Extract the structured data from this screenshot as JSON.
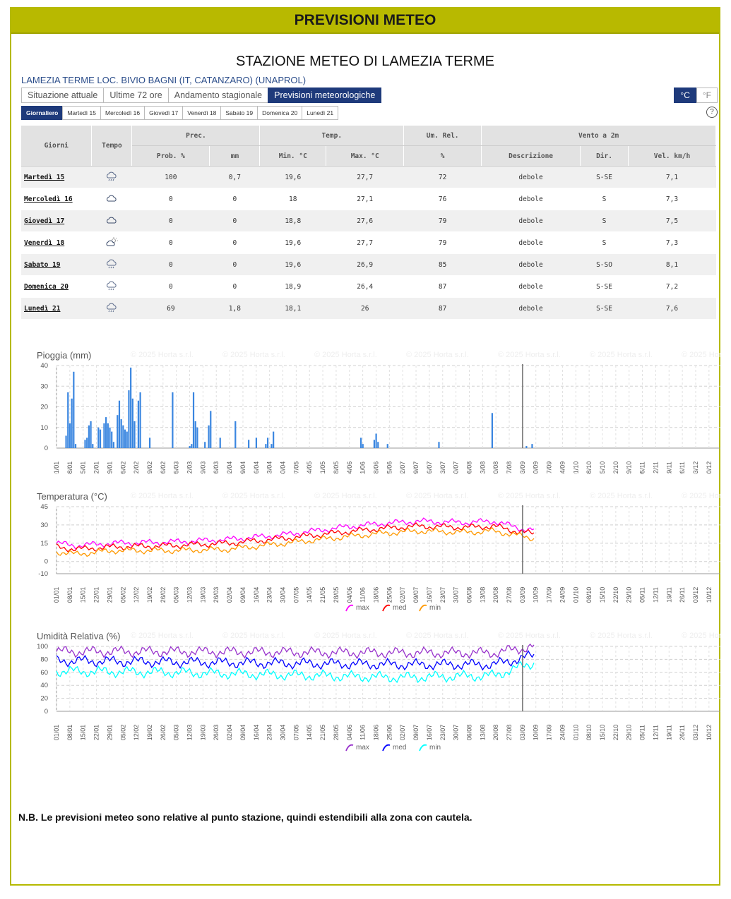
{
  "header": {
    "title": "PREVISIONI METEO"
  },
  "station": {
    "title": "STAZIONE METEO DI LAMEZIA TERME",
    "subtitle": "LAMEZIA TERME LOC. BIVIO BAGNI (IT, CATANZARO) (UNAPROL)"
  },
  "tabs": [
    {
      "label": "Situazione attuale",
      "active": false
    },
    {
      "label": "Ultime 72 ore",
      "active": false
    },
    {
      "label": "Andamento stagionale",
      "active": false
    },
    {
      "label": "Previsioni meteorologiche",
      "active": true
    }
  ],
  "units": [
    {
      "label": "°C",
      "active": true
    },
    {
      "label": "°F",
      "active": false
    }
  ],
  "day_tabs": [
    "Giornaliero",
    "Martedì 15",
    "Mercoledì 16",
    "Giovedì 17",
    "Venerdì 18",
    "Sabato 19",
    "Domenica 20",
    "Lunedì 21"
  ],
  "help_label": "?",
  "table": {
    "group_headers": [
      "Giorni",
      "Tempo",
      "Prec.",
      "Temp.",
      "Um. Rel.",
      "Vento a 2m"
    ],
    "sub_headers": [
      "Prob. %",
      "mm",
      "Min. °C",
      "Max. °C",
      "%",
      "Descrizione",
      "Dir.",
      "Vel. km/h"
    ],
    "rows": [
      {
        "day": "Martedì 15",
        "icon": "rain-cloud-icon",
        "prob": "100",
        "mm": "0,7",
        "tmin": "19,6",
        "tmax": "27,7",
        "rh": "72",
        "desc": "debole",
        "dir": "S-SE",
        "vel": "7,1"
      },
      {
        "day": "Mercoledì 16",
        "icon": "cloud-icon",
        "prob": "0",
        "mm": "0",
        "tmin": "18",
        "tmax": "27,1",
        "rh": "76",
        "desc": "debole",
        "dir": "S",
        "vel": "7,3"
      },
      {
        "day": "Giovedì 17",
        "icon": "cloud-icon",
        "prob": "0",
        "mm": "0",
        "tmin": "18,8",
        "tmax": "27,6",
        "rh": "79",
        "desc": "debole",
        "dir": "S",
        "vel": "7,5"
      },
      {
        "day": "Venerdì 18",
        "icon": "sun-cloud-icon",
        "prob": "0",
        "mm": "0",
        "tmin": "19,6",
        "tmax": "27,7",
        "rh": "79",
        "desc": "debole",
        "dir": "S",
        "vel": "7,3"
      },
      {
        "day": "Sabato 19",
        "icon": "rain-cloud-icon",
        "prob": "0",
        "mm": "0",
        "tmin": "19,6",
        "tmax": "26,9",
        "rh": "85",
        "desc": "debole",
        "dir": "S-SO",
        "vel": "8,1"
      },
      {
        "day": "Domenica 20",
        "icon": "rain-cloud-icon",
        "prob": "0",
        "mm": "0",
        "tmin": "18,9",
        "tmax": "26,4",
        "rh": "87",
        "desc": "debole",
        "dir": "S-SE",
        "vel": "7,2"
      },
      {
        "day": "Lunedì 21",
        "icon": "rain-cloud-icon",
        "prob": "69",
        "mm": "1,8",
        "tmin": "18,1",
        "tmax": "26",
        "rh": "87",
        "desc": "debole",
        "dir": "S-SE",
        "vel": "7,6"
      }
    ]
  },
  "watermark": "© 2025 Horta s.r.l.",
  "chart_data": [
    {
      "type": "bar",
      "title": "Pioggia (mm)",
      "ylim": [
        0,
        40
      ],
      "yticks": [
        0,
        10,
        20,
        30,
        40
      ],
      "xticks": [
        "01/01",
        "08/01",
        "15/01",
        "22/01",
        "29/01",
        "05/02",
        "12/02",
        "19/02",
        "26/02",
        "05/03",
        "12/03",
        "19/03",
        "26/03",
        "02/04",
        "09/04",
        "16/04",
        "23/04",
        "30/04",
        "07/05",
        "14/05",
        "21/05",
        "28/05",
        "04/06",
        "11/06",
        "18/06",
        "25/06",
        "02/07",
        "09/07",
        "16/07",
        "23/07",
        "30/07",
        "06/08",
        "13/08",
        "20/08",
        "27/08",
        "03/09",
        "10/09",
        "17/09",
        "24/09",
        "01/10",
        "08/10",
        "15/10",
        "22/10",
        "29/10",
        "05/11",
        "12/11",
        "19/11",
        "26/11",
        "03/12",
        "10/12"
      ],
      "x_day": [
        5,
        6,
        7,
        8,
        9,
        10,
        15,
        16,
        17,
        18,
        19,
        22,
        23,
        25,
        26,
        27,
        28,
        29,
        30,
        32,
        33,
        34,
        35,
        36,
        37,
        38,
        39,
        40,
        41,
        43,
        44,
        49,
        61,
        70,
        71,
        72,
        73,
        74,
        78,
        80,
        81,
        86,
        94,
        101,
        105,
        110,
        111,
        113,
        114,
        160,
        161,
        167,
        168,
        169,
        174,
        201,
        229,
        247,
        250
      ],
      "values": [
        6,
        27,
        12,
        24,
        37,
        2,
        4,
        5,
        11,
        13,
        2,
        10,
        9,
        12,
        15,
        12,
        10,
        8,
        3,
        16,
        23,
        14,
        11,
        9,
        8,
        28,
        39,
        24,
        13,
        23,
        27,
        5,
        27,
        1,
        2,
        27,
        13,
        10,
        3,
        11,
        18,
        5,
        13,
        4,
        5,
        2,
        5,
        2,
        8,
        5,
        2,
        4,
        7,
        3,
        2,
        3,
        17,
        1,
        2
      ],
      "marker_day": 245
    },
    {
      "type": "line",
      "title": "Temperatura (°C)",
      "ylim": [
        -10,
        45
      ],
      "yticks": [
        -10,
        0,
        15,
        30,
        45
      ],
      "xticks": [
        "01/01",
        "08/01",
        "15/01",
        "22/01",
        "29/01",
        "05/02",
        "12/02",
        "19/02",
        "26/02",
        "05/03",
        "12/03",
        "19/03",
        "26/03",
        "02/04",
        "09/04",
        "16/04",
        "23/04",
        "30/04",
        "07/05",
        "14/05",
        "21/05",
        "28/05",
        "04/06",
        "11/06",
        "18/06",
        "25/06",
        "02/07",
        "09/07",
        "16/07",
        "23/07",
        "30/07",
        "06/08",
        "13/08",
        "20/08",
        "27/08",
        "03/09",
        "10/09",
        "17/09",
        "24/09",
        "01/10",
        "08/10",
        "15/10",
        "22/10",
        "29/10",
        "05/11",
        "12/11",
        "19/11",
        "26/11",
        "03/12",
        "10/12"
      ],
      "series": [
        {
          "name": "max",
          "color": "#ff00ff",
          "anchors_day": [
            0,
            10,
            30,
            60,
            90,
            120,
            150,
            170,
            190,
            215,
            230,
            244,
            251
          ],
          "anchors_val": [
            15,
            13,
            15,
            16,
            18,
            22,
            28,
            31,
            33,
            32,
            33,
            27,
            26
          ]
        },
        {
          "name": "med",
          "color": "#ff0000",
          "anchors_day": [
            0,
            10,
            30,
            60,
            90,
            120,
            150,
            170,
            190,
            215,
            230,
            244,
            251
          ],
          "anchors_val": [
            12,
            10,
            12,
            13,
            15,
            19,
            24,
            27,
            29,
            28,
            29,
            24,
            23
          ]
        },
        {
          "name": "min",
          "color": "#ff9900",
          "anchors_day": [
            0,
            10,
            30,
            60,
            90,
            120,
            150,
            170,
            190,
            215,
            230,
            244,
            251
          ],
          "anchors_val": [
            8,
            6,
            9,
            9,
            10,
            15,
            20,
            23,
            25,
            24,
            25,
            21,
            19
          ]
        }
      ],
      "marker_day": 245
    },
    {
      "type": "line",
      "title": "Umidità Relativa (%)",
      "ylim": [
        0,
        100
      ],
      "yticks": [
        0,
        20,
        40,
        60,
        80,
        100
      ],
      "xticks": [
        "01/01",
        "08/01",
        "15/01",
        "22/01",
        "29/01",
        "05/02",
        "12/02",
        "19/02",
        "26/02",
        "05/03",
        "12/03",
        "19/03",
        "26/03",
        "02/04",
        "09/04",
        "16/04",
        "23/04",
        "30/04",
        "07/05",
        "14/05",
        "21/05",
        "28/05",
        "04/06",
        "11/06",
        "18/06",
        "25/06",
        "02/07",
        "09/07",
        "16/07",
        "23/07",
        "30/07",
        "06/08",
        "13/08",
        "20/08",
        "27/08",
        "03/09",
        "10/09",
        "17/09",
        "24/09",
        "01/10",
        "08/10",
        "15/10",
        "22/10",
        "29/10",
        "05/11",
        "12/11",
        "19/11",
        "26/11",
        "03/12",
        "10/12"
      ],
      "series": [
        {
          "name": "max",
          "color": "#9933cc",
          "anchors_day": [
            0,
            60,
            120,
            180,
            230,
            251
          ],
          "anchors_val": [
            92,
            92,
            91,
            90,
            90,
            100
          ]
        },
        {
          "name": "med",
          "color": "#0000ff",
          "anchors_day": [
            0,
            60,
            120,
            180,
            230,
            251
          ],
          "anchors_val": [
            78,
            76,
            74,
            72,
            72,
            86
          ]
        },
        {
          "name": "min",
          "color": "#00ffff",
          "anchors_day": [
            0,
            60,
            120,
            180,
            230,
            251
          ],
          "anchors_val": [
            62,
            60,
            56,
            52,
            55,
            75
          ]
        }
      ],
      "marker_day": 245
    }
  ],
  "note": "N.B. Le previsioni meteo sono relative al punto stazione, quindi estendibili alla zona con cautela."
}
